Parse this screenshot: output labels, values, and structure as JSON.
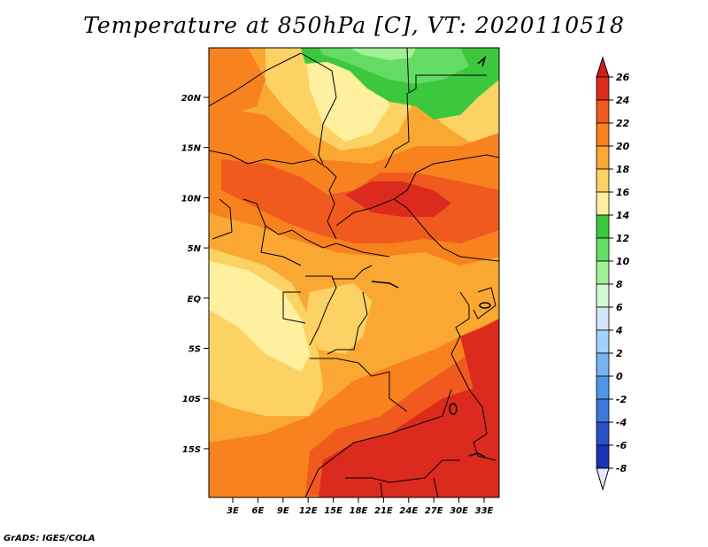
{
  "map": {
    "title": "Temperature at 850hPa [C], VT: 2020110518",
    "credit": "GrADS: IGES/COLA",
    "lat_labels": [
      "20N",
      "15N",
      "10N",
      "5N",
      "EQ",
      "5S",
      "10S",
      "15S"
    ],
    "lon_labels": [
      "3E",
      "6E",
      "9E",
      "12E",
      "15E",
      "18E",
      "21E",
      "24E",
      "27E",
      "30E",
      "33E"
    ]
  },
  "colorbar": {
    "levels": [
      "26",
      "24",
      "22",
      "20",
      "18",
      "16",
      "14",
      "12",
      "10",
      "8",
      "6",
      "4",
      "2",
      "0",
      "-2",
      "-4",
      "-6",
      "-8"
    ],
    "colors": [
      "#dc2a1e",
      "#f05a1e",
      "#f8821e",
      "#fba832",
      "#fdd264",
      "#fff0a0",
      "#3cc83c",
      "#64dc64",
      "#a0f096",
      "#d2fad2",
      "#d2e6fa",
      "#a0d2fa",
      "#78b4f0",
      "#5096e6",
      "#3c78dc",
      "#2850c8",
      "#1e32b4",
      "#140a8c"
    ],
    "top_arrow_color": "#d21e14",
    "bottom_arrow_color": "#e6e6fa"
  },
  "palette": {
    "t26": "#dc2a1e",
    "t24": "#f05a1e",
    "t22": "#f8821e",
    "t20": "#fba832",
    "t18": "#fdd264",
    "t16": "#fff0a0",
    "t14": "#3cc83c",
    "t12": "#64dc64",
    "t10": "#a0f096"
  }
}
